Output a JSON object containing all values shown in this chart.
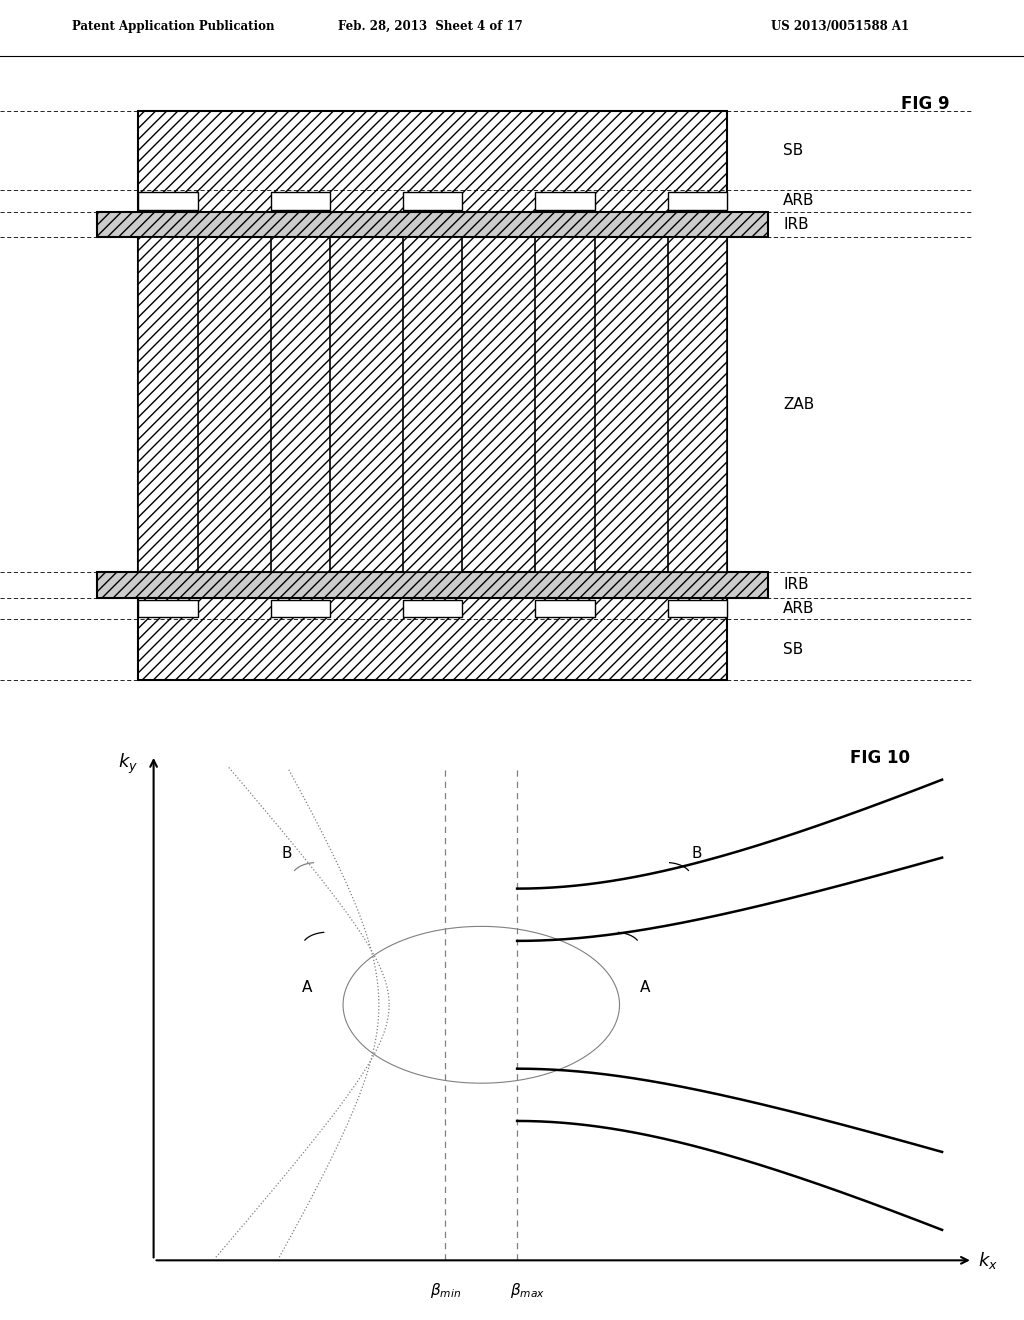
{
  "header_left": "Patent Application Publication",
  "header_mid": "Feb. 28, 2013  Sheet 4 of 17",
  "header_right": "US 2013/0051588 A1",
  "fig9_label": "FIG 9",
  "fig10_label": "FIG 10",
  "background_color": "#ffffff"
}
